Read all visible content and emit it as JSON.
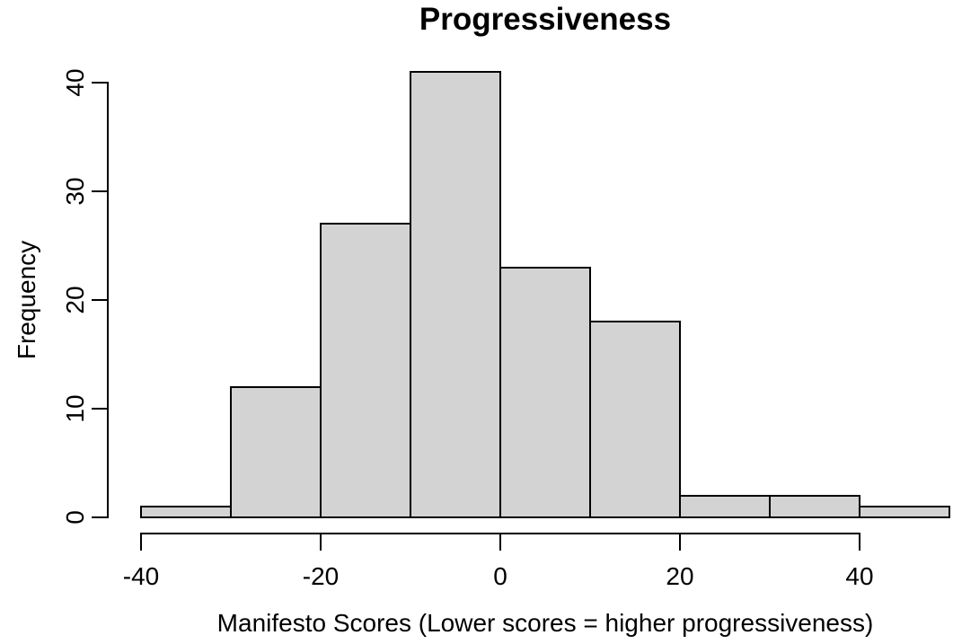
{
  "chart_data": {
    "type": "bar",
    "subtype": "histogram",
    "title": "Progressiveness",
    "xlabel": "Manifesto Scores (Lower scores = higher progressiveness)",
    "ylabel": "Frequency",
    "bin_edges": [
      -40,
      -30,
      -20,
      -10,
      0,
      10,
      20,
      30,
      40,
      50
    ],
    "frequencies": [
      1,
      12,
      27,
      41,
      23,
      18,
      2,
      2,
      1
    ],
    "x_tick_values": [
      -40,
      -20,
      0,
      20,
      40
    ],
    "x_tick_labels": [
      "-40",
      "-20",
      "0",
      "20",
      "40"
    ],
    "y_tick_values": [
      0,
      10,
      20,
      30,
      40
    ],
    "y_tick_labels": [
      "0",
      "10",
      "20",
      "30",
      "40"
    ],
    "xlim": [
      -40,
      50
    ],
    "ylim": [
      0,
      40
    ],
    "grid": false,
    "legend_position": "none",
    "bar_fill_color": "#d3d3d3",
    "bar_border_color": "#000000",
    "axis_color": "#000000",
    "text_color": "#000000",
    "background_color": "#ffffff"
  }
}
